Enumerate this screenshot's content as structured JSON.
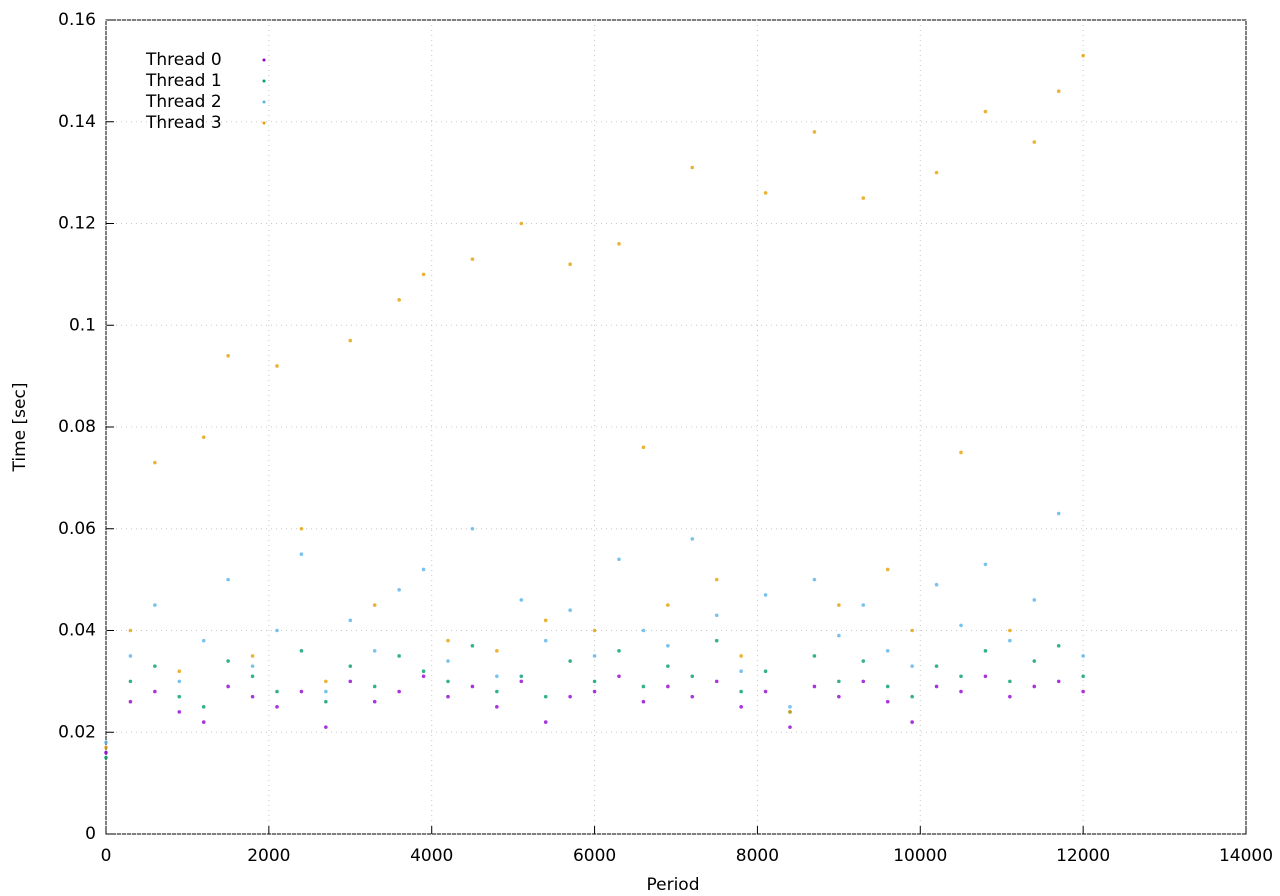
{
  "chart_data": {
    "type": "scatter",
    "xlabel": "Period",
    "ylabel": "Time [sec]",
    "x": [
      0,
      300,
      600,
      900,
      1200,
      1500,
      1800,
      2100,
      2400,
      2700,
      3000,
      3300,
      3600,
      3900,
      4200,
      4500,
      4800,
      5100,
      5400,
      5700,
      6000,
      6300,
      6600,
      6900,
      7200,
      7500,
      7800,
      8100,
      8400,
      8700,
      9000,
      9300,
      9600,
      9900,
      10200,
      10500,
      10800,
      11100,
      11400,
      11700,
      12000
    ],
    "series": [
      {
        "name": "Thread 0",
        "color": "#9400d3",
        "values": [
          0.016,
          0.026,
          0.028,
          0.024,
          0.022,
          0.029,
          0.027,
          0.025,
          0.028,
          0.021,
          0.03,
          0.026,
          0.028,
          0.031,
          0.027,
          0.029,
          0.025,
          0.03,
          0.022,
          0.027,
          0.028,
          0.031,
          0.026,
          0.029,
          0.027,
          0.03,
          0.025,
          0.028,
          0.021,
          0.029,
          0.027,
          0.03,
          0.026,
          0.022,
          0.029,
          0.028,
          0.031,
          0.027,
          0.029,
          0.03,
          0.028
        ]
      },
      {
        "name": "Thread 1",
        "color": "#009e73",
        "values": [
          0.015,
          0.03,
          0.033,
          0.027,
          0.025,
          0.034,
          0.031,
          0.028,
          0.036,
          0.026,
          0.033,
          0.029,
          0.035,
          0.032,
          0.03,
          0.037,
          0.028,
          0.031,
          0.027,
          0.034,
          0.03,
          0.036,
          0.029,
          0.033,
          0.031,
          0.038,
          0.028,
          0.032,
          0.024,
          0.035,
          0.03,
          0.034,
          0.029,
          0.027,
          0.033,
          0.031,
          0.036,
          0.03,
          0.034,
          0.037,
          0.031
        ]
      },
      {
        "name": "Thread 2",
        "color": "#56b4e9",
        "values": [
          0.018,
          0.035,
          0.045,
          0.03,
          0.038,
          0.05,
          0.033,
          0.04,
          0.055,
          0.028,
          0.042,
          0.036,
          0.048,
          0.052,
          0.034,
          0.06,
          0.031,
          0.046,
          0.038,
          0.044,
          0.035,
          0.054,
          0.04,
          0.037,
          0.058,
          0.043,
          0.032,
          0.047,
          0.025,
          0.05,
          0.039,
          0.045,
          0.036,
          0.033,
          0.049,
          0.041,
          0.053,
          0.038,
          0.046,
          0.063,
          0.035
        ]
      },
      {
        "name": "Thread 3",
        "color": "#e69f00",
        "values": [
          0.017,
          0.04,
          0.073,
          0.032,
          0.078,
          0.094,
          0.035,
          0.092,
          0.06,
          0.03,
          0.097,
          0.045,
          0.105,
          0.11,
          0.038,
          0.113,
          0.036,
          0.12,
          0.042,
          0.112,
          0.04,
          0.116,
          0.076,
          0.045,
          0.131,
          0.05,
          0.035,
          0.126,
          0.024,
          0.138,
          0.045,
          0.125,
          0.052,
          0.04,
          0.13,
          0.075,
          0.142,
          0.04,
          0.136,
          0.146,
          0.153
        ]
      }
    ],
    "xlim": [
      0,
      14000
    ],
    "xticks": [
      0,
      2000,
      4000,
      6000,
      8000,
      10000,
      12000,
      14000
    ],
    "ylim": [
      0,
      0.16
    ],
    "yticks": [
      0,
      0.02,
      0.04,
      0.06,
      0.08,
      0.1,
      0.12,
      0.14,
      0.16
    ],
    "grid": true,
    "legend": "top-left"
  }
}
